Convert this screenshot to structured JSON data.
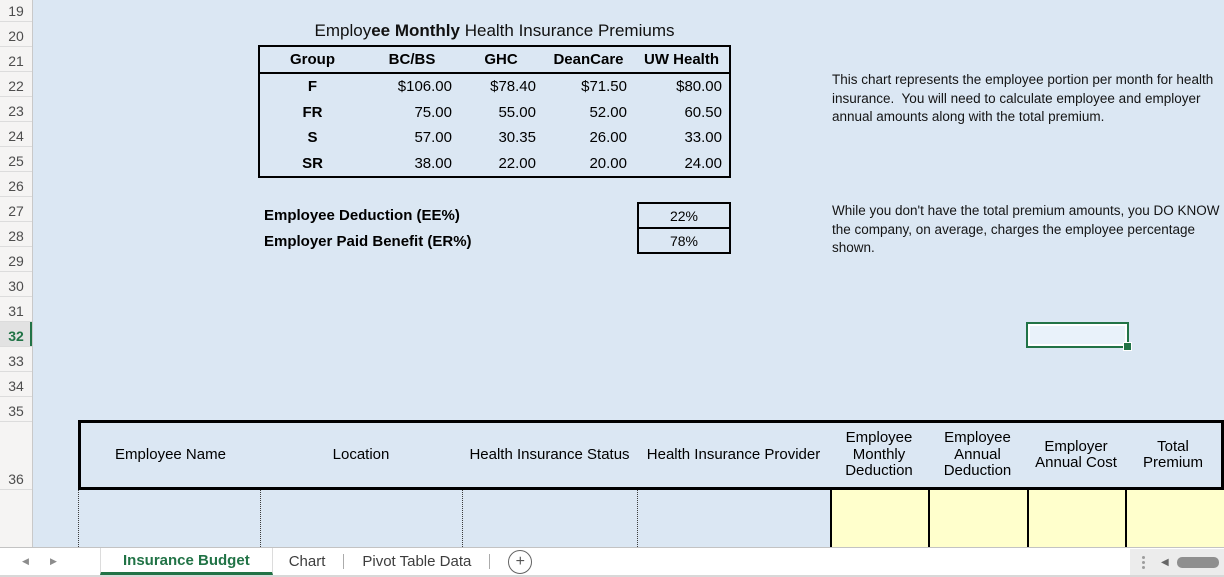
{
  "colors": {
    "accent_green": "#217346",
    "cell_yellow": "#ffffcc",
    "sheet_blue": "#dbe7f3"
  },
  "sheet": {
    "row_numbers": [
      "19",
      "20",
      "21",
      "22",
      "23",
      "24",
      "25",
      "26",
      "27",
      "28",
      "29",
      "30",
      "31",
      "32",
      "33",
      "34",
      "35",
      "36"
    ],
    "selected_row": "32",
    "premium_table": {
      "title_pre": "Employ",
      "title_bold": "ee Monthly",
      "title_post": " Health Insurance Premiums",
      "columns": [
        "Group",
        "BC/BS",
        "GHC",
        "DeanCare",
        "UW Health"
      ],
      "rows": [
        {
          "group": "F",
          "values": [
            "$106.00",
            "$78.40",
            "$71.50",
            "$80.00"
          ]
        },
        {
          "group": "FR",
          "values": [
            "75.00",
            "55.00",
            "52.00",
            "60.50"
          ]
        },
        {
          "group": "S",
          "values": [
            "57.00",
            "30.35",
            "26.00",
            "33.00"
          ]
        },
        {
          "group": "SR",
          "values": [
            "38.00",
            "22.00",
            "20.00",
            "24.00"
          ]
        }
      ]
    },
    "deduction_panel": {
      "employee_label": "Employee Deduction (EE%)",
      "employee_value": "22%",
      "employer_label": "Employer Paid Benefit (ER%)",
      "employer_value": "78%"
    },
    "notes": {
      "premium_note": "This chart represents the employee portion per month for health insurance.  You will need to calculate employee and employer annual amounts along with the total premium.",
      "percentage_note": "While you don't have the total premium amounts, you DO KNOW the company, on average, charges the employee percentage shown."
    },
    "employee_table": {
      "headers": [
        "Employee Name",
        "Location",
        "Health Insurance Status",
        "Health Insurance Provider",
        "Employee Monthly Deduction",
        "Employee Annual Deduction",
        "Employer Annual Cost",
        "Total Premium"
      ]
    }
  },
  "tab_bar": {
    "tabs": [
      {
        "label": "Insurance Budget",
        "active": true
      },
      {
        "label": "Chart",
        "active": false
      },
      {
        "label": "Pivot Table Data",
        "active": false
      }
    ],
    "add_sheet_label": "+",
    "nav_left": "◀",
    "nav_right": "▶",
    "scroll_left": "◀"
  }
}
